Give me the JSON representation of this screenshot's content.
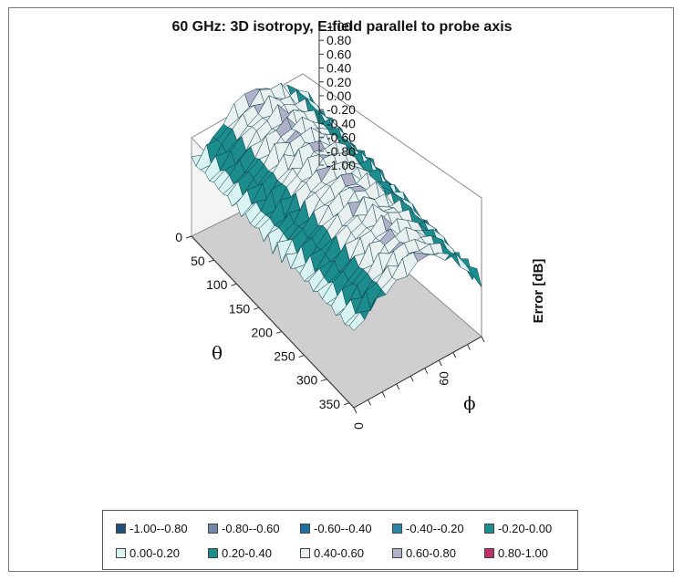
{
  "chart_data": {
    "type": "surface",
    "title": "60 GHz: 3D isotropy, E-field parallel to probe axis",
    "zlabel": "Error [dB]",
    "theta_label": "θ",
    "phi_label": "ϕ",
    "theta_ticks": [
      "0",
      "50",
      "100",
      "150",
      "200",
      "250",
      "300",
      "350"
    ],
    "phi_ticks": [
      "0",
      "60"
    ],
    "z_ticks": [
      "1.00",
      "0.80",
      "0.60",
      "0.40",
      "0.20",
      "0.00",
      "-0.20",
      "-0.40",
      "-0.60",
      "-0.80",
      "-1.00"
    ],
    "zlim": [
      -1.0,
      1.0
    ],
    "theta_range": [
      0,
      360
    ],
    "phi_range": [
      0,
      90
    ],
    "surface_profile_phi": [
      0,
      15,
      30,
      45,
      60,
      75,
      90
    ],
    "surface_profile_error": [
      0.1,
      0.28,
      0.5,
      0.62,
      0.5,
      0.25,
      -0.2
    ],
    "legend": [
      {
        "label": "-1.00--0.80",
        "color": "#1f4f78"
      },
      {
        "label": "-0.80--0.60",
        "color": "#6f8aa8"
      },
      {
        "label": "-0.60--0.40",
        "color": "#1f6fa0"
      },
      {
        "label": "-0.40--0.20",
        "color": "#2a86a8"
      },
      {
        "label": "-0.20-0.00",
        "color": "#1a8f8f"
      },
      {
        "label": "0.00-0.20",
        "color": "#d9f2f2"
      },
      {
        "label": "0.20-0.40",
        "color": "#1c8c8c"
      },
      {
        "label": "0.40-0.60",
        "color": "#e8f0f0"
      },
      {
        "label": "0.60-0.80",
        "color": "#b0b0c8"
      },
      {
        "label": "0.80-1.00",
        "color": "#c0306a"
      }
    ]
  }
}
